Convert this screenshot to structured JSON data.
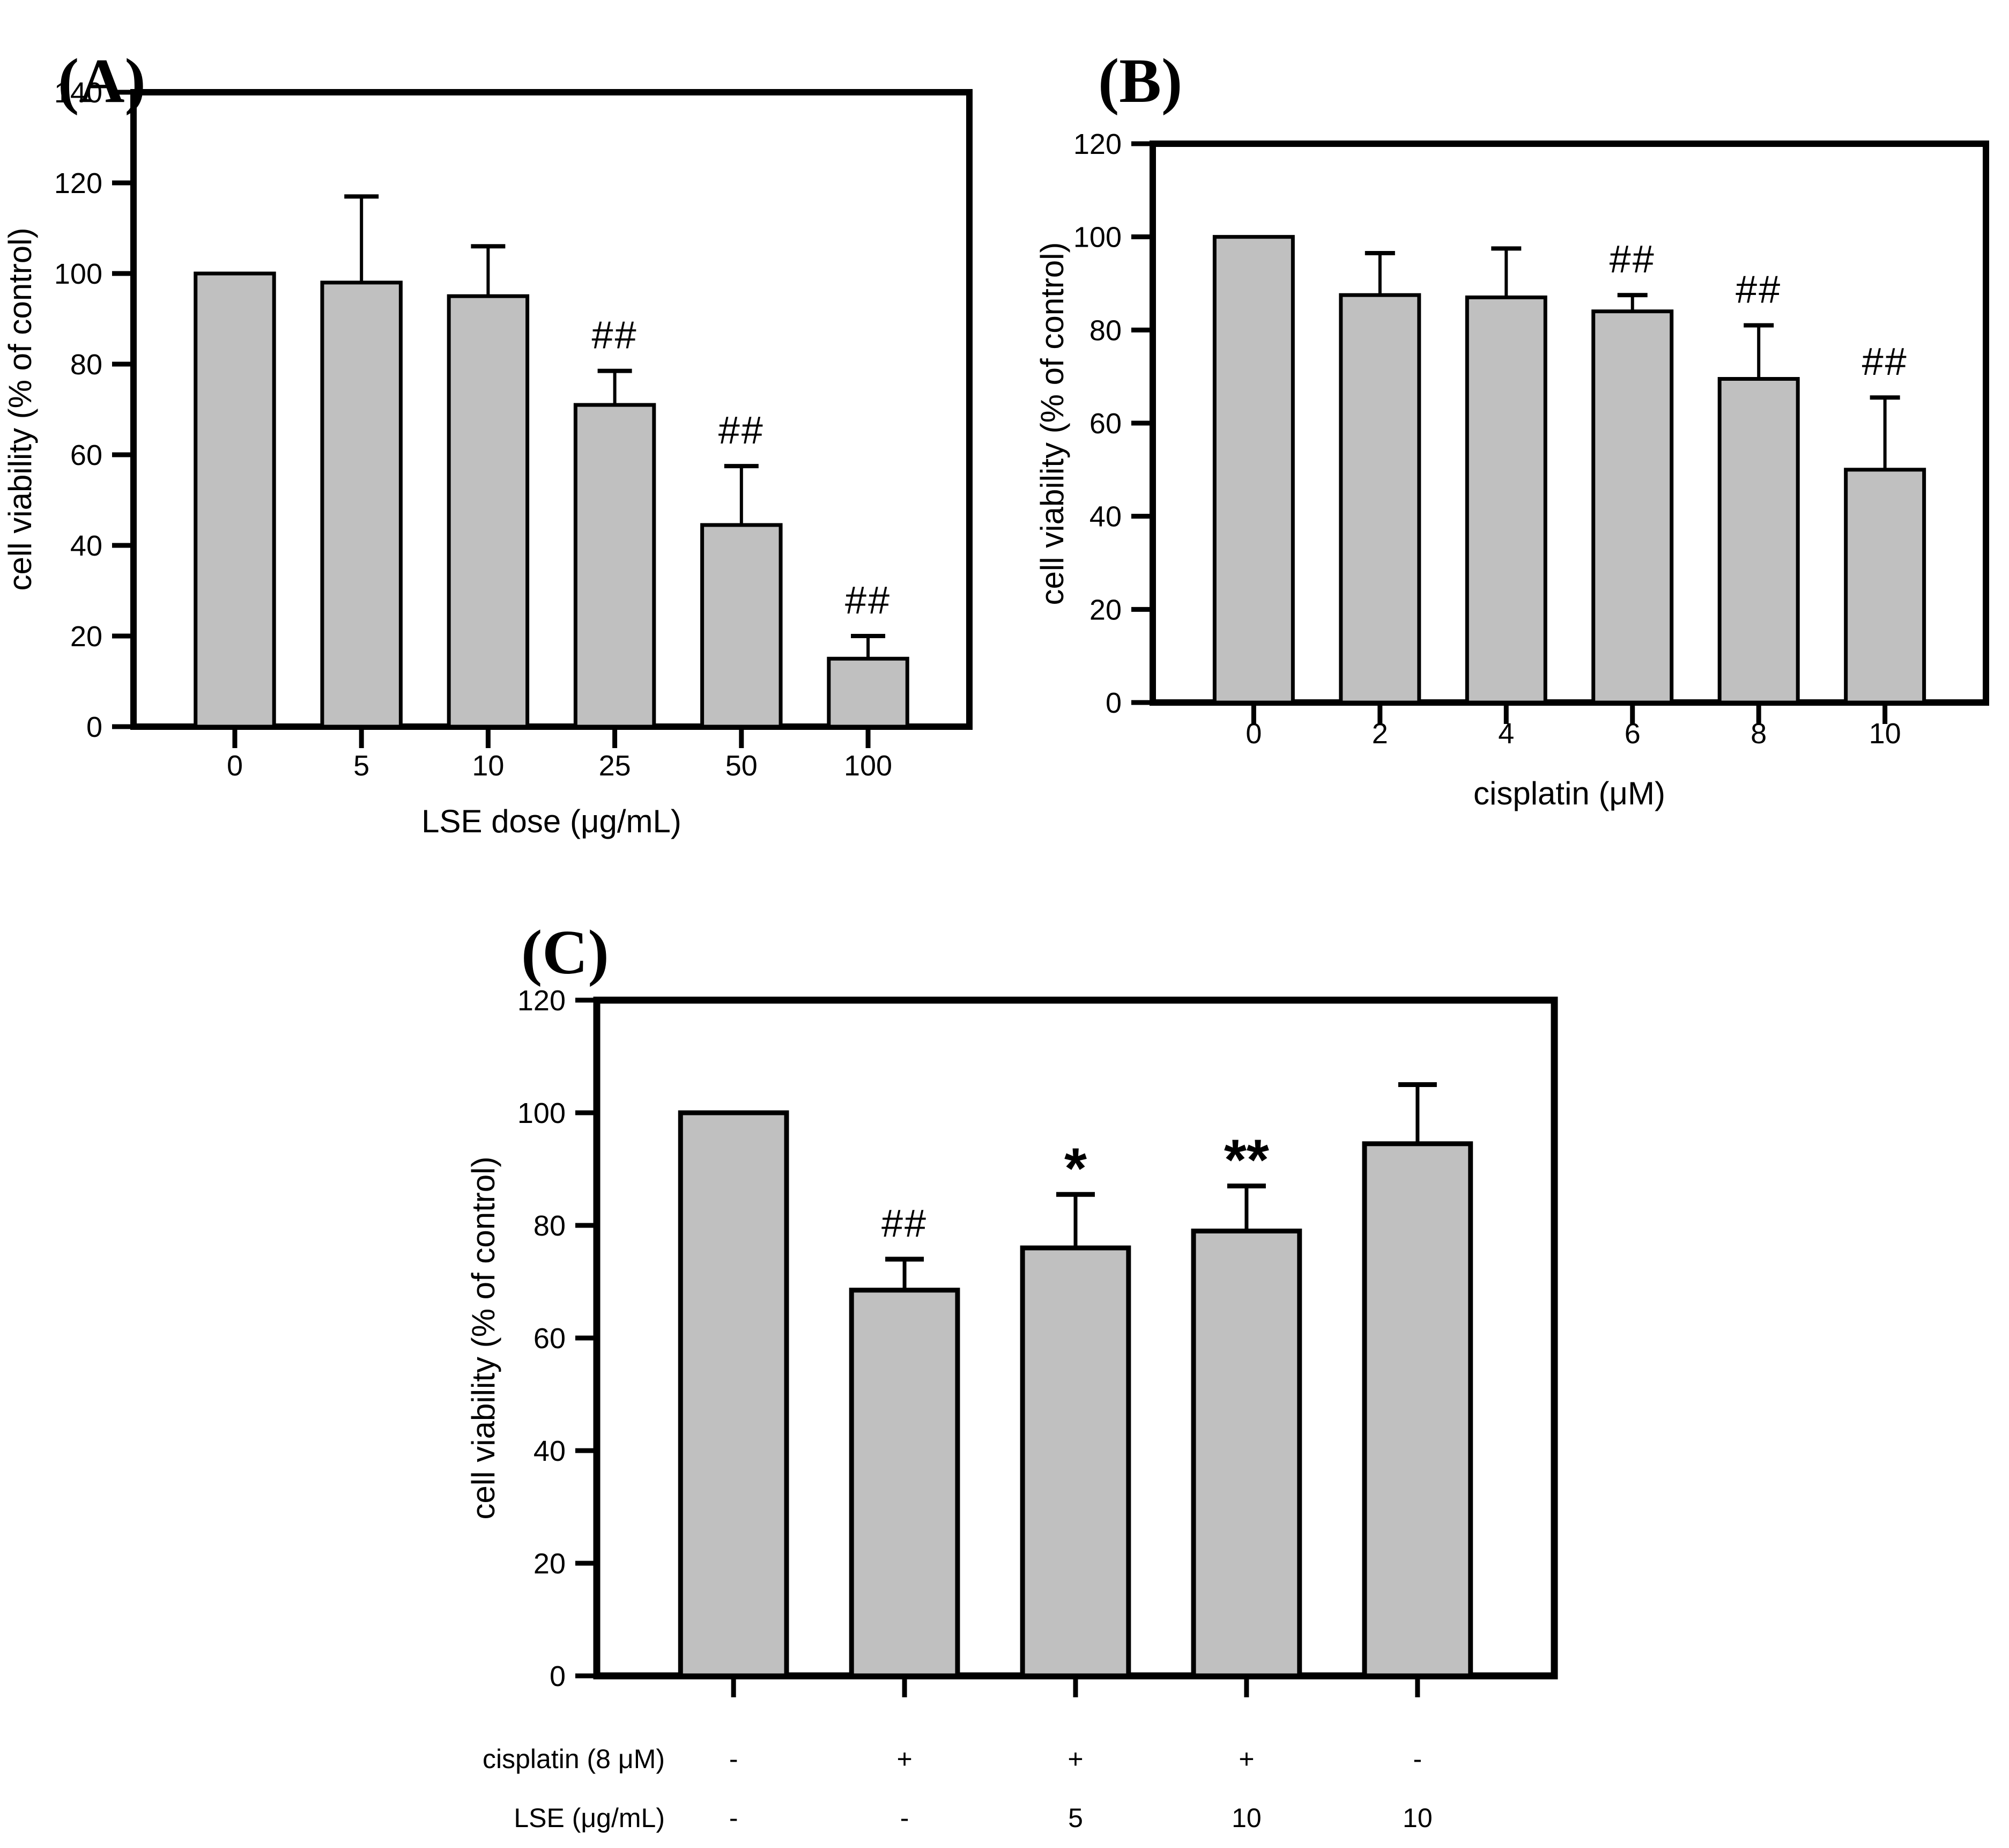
{
  "figure": {
    "background": "#ffffff",
    "bar_fill": "#c0c0c0",
    "bar_stroke": "#000000",
    "axis_color": "#000000",
    "panels": [
      {
        "label": "(A)"
      },
      {
        "label": "(B)"
      },
      {
        "label": "(C)"
      }
    ]
  },
  "chart_data": [
    {
      "id": "A",
      "type": "bar",
      "title": "",
      "categories": [
        "0",
        "5",
        "10",
        "25",
        "50",
        "100"
      ],
      "values": [
        100,
        98,
        95,
        71,
        44.5,
        15
      ],
      "errors_up": [
        0,
        19,
        11,
        7.5,
        13,
        5
      ],
      "annotations": [
        "",
        "",
        "",
        "##",
        "##",
        "##"
      ],
      "xlabel": "LSE dose (μg/mL)",
      "ylabel": "cell viability (% of control)",
      "ylim": [
        0,
        140
      ],
      "ytick_step": 20,
      "yticks": [
        0,
        20,
        40,
        60,
        80,
        100,
        120,
        140
      ],
      "grid": false,
      "legend": "none",
      "bar_fill": "#c0c0c0"
    },
    {
      "id": "B",
      "type": "bar",
      "title": "",
      "categories": [
        "0",
        "2",
        "4",
        "6",
        "8",
        "10"
      ],
      "values": [
        100,
        87.5,
        87,
        84,
        69.5,
        50
      ],
      "errors_up": [
        0,
        9,
        10.5,
        3.5,
        11.5,
        15.5
      ],
      "annotations": [
        "",
        "",
        "",
        "##",
        "##",
        "##"
      ],
      "xlabel": "cisplatin (μM)",
      "ylabel": "cell viability (% of control)",
      "ylim": [
        0,
        120
      ],
      "ytick_step": 20,
      "yticks": [
        0,
        20,
        40,
        60,
        80,
        100,
        120
      ],
      "grid": false,
      "legend": "none",
      "bar_fill": "#c0c0c0"
    },
    {
      "id": "C",
      "type": "bar",
      "title": "",
      "categories": [
        "",
        "",
        "",
        "",
        ""
      ],
      "values": [
        100,
        68.5,
        76,
        79,
        94.5
      ],
      "errors_up": [
        0,
        5.5,
        9.5,
        8,
        10.5
      ],
      "annotations": [
        "",
        "##",
        "*",
        "**",
        ""
      ],
      "xlabel": "",
      "ylabel": "cell viability (% of control)",
      "ylim": [
        0,
        120
      ],
      "ytick_step": 20,
      "yticks": [
        0,
        20,
        40,
        60,
        80,
        100,
        120
      ],
      "grid": false,
      "legend": "none",
      "bar_fill": "#c0c0c0",
      "treatment_rows": [
        {
          "label": "cisplatin (8 μM)",
          "values": [
            "-",
            "+",
            "+",
            "+",
            "-"
          ]
        },
        {
          "label": "LSE (μg/mL)",
          "values": [
            "-",
            "-",
            "5",
            "10",
            "10"
          ]
        }
      ]
    }
  ]
}
